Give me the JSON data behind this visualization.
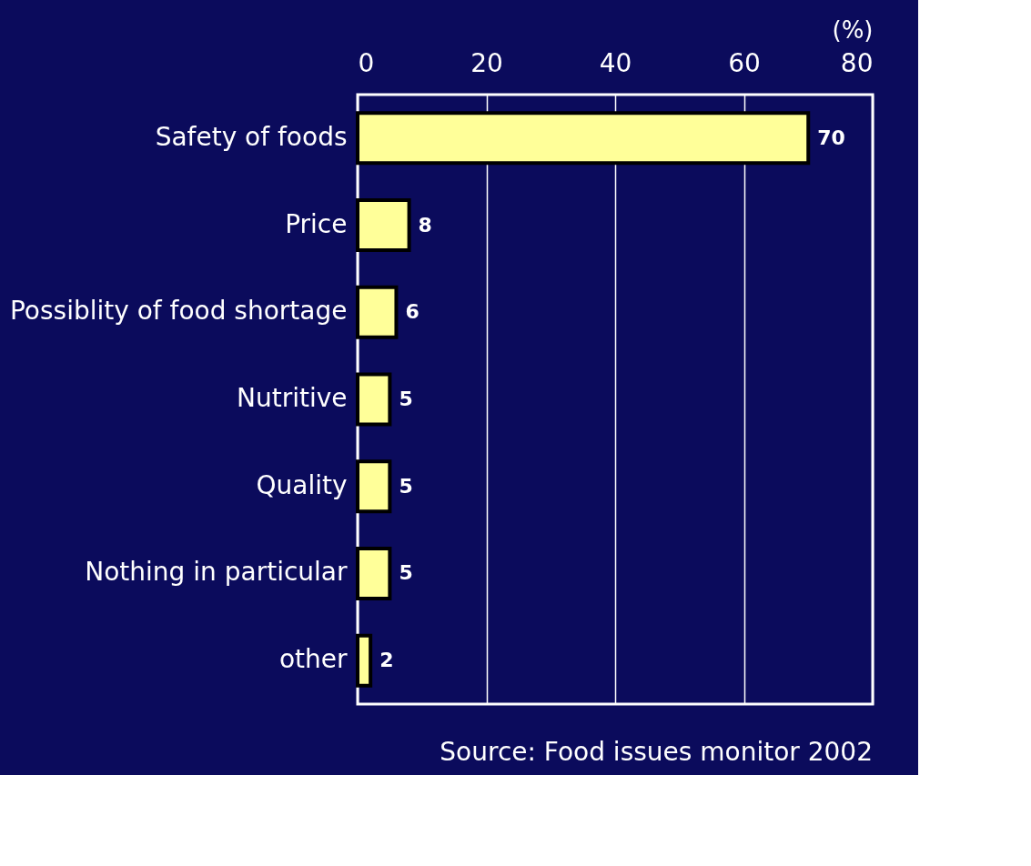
{
  "chart_data": {
    "type": "bar",
    "orientation": "horizontal",
    "xlabel": "(%)",
    "categories": [
      "Safety of foods",
      "Price",
      "Possiblity of food shortage",
      "Nutritive",
      "Quality",
      "Nothing in particular",
      "other"
    ],
    "values": [
      70,
      8,
      6,
      5,
      5,
      5,
      2
    ],
    "color": "#ffff99",
    "xlim": [
      0,
      80
    ],
    "xticks": [
      0,
      20,
      40,
      60,
      80
    ],
    "grid": "x",
    "data_labels": true,
    "annotations": [
      "Source: Food issues monitor 2002"
    ]
  }
}
